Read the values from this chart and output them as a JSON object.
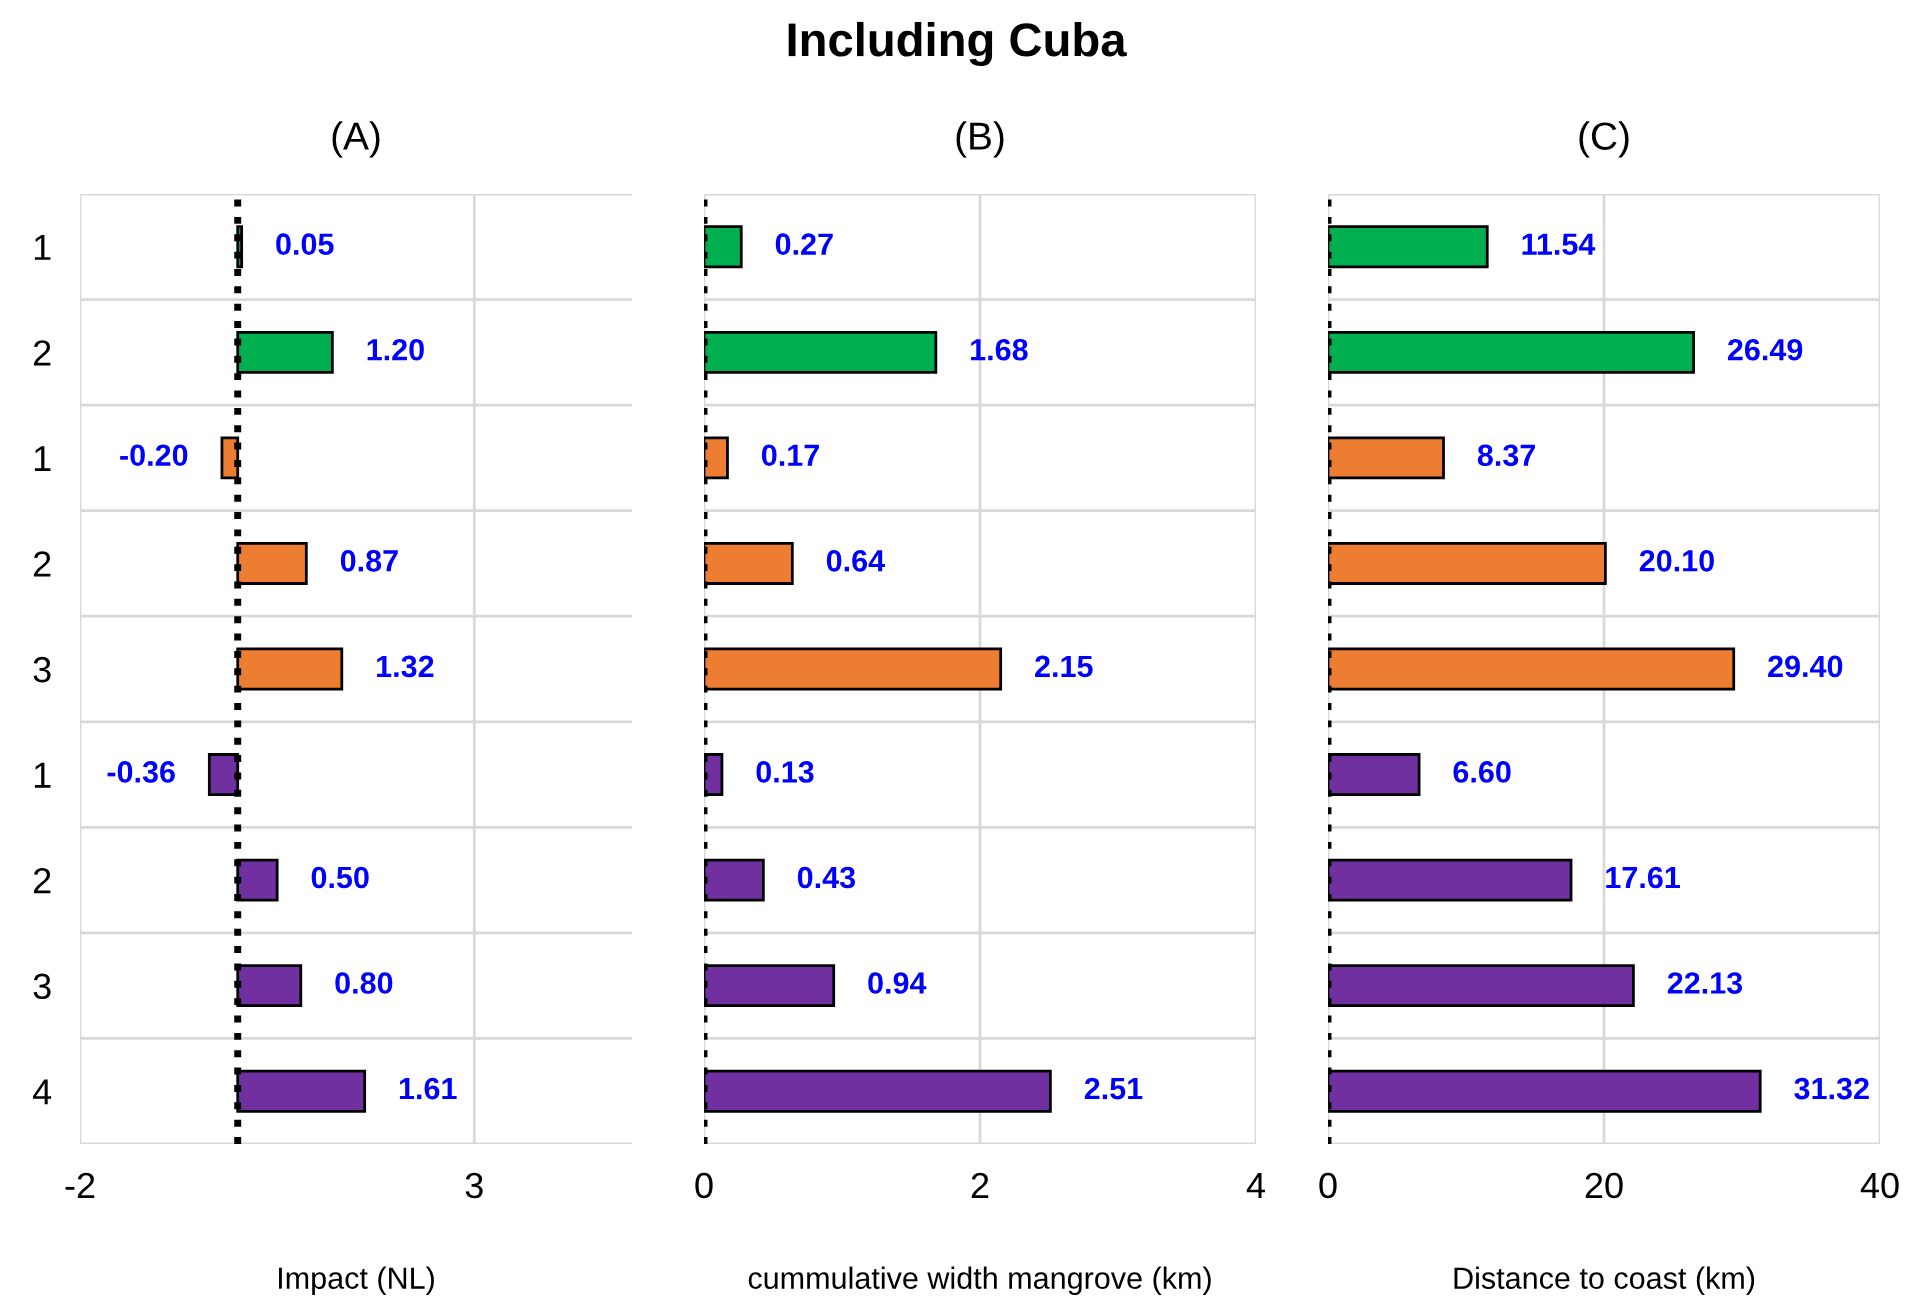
{
  "chart_data": [
    {
      "type": "bar",
      "orientation": "horizontal",
      "title": "(A)",
      "xlabel": "Impact (NL)",
      "annotations": [
        "Including Cuba"
      ],
      "categories": [
        "1",
        "2",
        "1",
        "2",
        "3",
        "1",
        "2",
        "3",
        "4"
      ],
      "values": [
        0.05,
        1.2,
        -0.2,
        0.87,
        1.32,
        -0.36,
        0.5,
        0.8,
        1.61
      ],
      "value_labels": [
        "0.05",
        "1.20",
        "-0.20",
        "0.87",
        "1.32",
        "-0.36",
        "0.50",
        "0.80",
        "1.61"
      ],
      "colors": [
        "#00b050",
        "#00b050",
        "#ed7d31",
        "#ed7d31",
        "#ed7d31",
        "#7030a0",
        "#7030a0",
        "#7030a0",
        "#7030a0"
      ],
      "xlim": [
        -2,
        5
      ],
      "xticks": [
        -2,
        3
      ],
      "grid": true,
      "ref_lines": [
        {
          "axis": "x",
          "value": 0,
          "color": "#000000",
          "line_style": "dotted"
        }
      ]
    },
    {
      "type": "bar",
      "orientation": "horizontal",
      "title": "(B)",
      "xlabel": "cummulative width mangrove (km)",
      "tick_labels": "x",
      "categories": [
        "1",
        "2",
        "1",
        "2",
        "3",
        "1",
        "2",
        "3",
        "4"
      ],
      "values": [
        0.27,
        1.68,
        0.17,
        0.64,
        2.15,
        0.13,
        0.43,
        0.94,
        2.51
      ],
      "value_labels": [
        "0.27",
        "1.68",
        "0.17",
        "0.64",
        "2.15",
        "0.13",
        "0.43",
        "0.94",
        "2.51"
      ],
      "colors": [
        "#00b050",
        "#00b050",
        "#ed7d31",
        "#ed7d31",
        "#ed7d31",
        "#7030a0",
        "#7030a0",
        "#7030a0",
        "#7030a0"
      ],
      "xlim": [
        0,
        4
      ],
      "xticks": [
        0,
        2,
        4
      ],
      "grid": true,
      "ref_lines": [
        {
          "axis": "x",
          "value": 0,
          "color": "#000000",
          "line_style": "dotted"
        }
      ]
    },
    {
      "type": "bar",
      "orientation": "horizontal",
      "title": "(C)",
      "xlabel": "Distance to coast (km)",
      "tick_labels": "x",
      "categories": [
        "1",
        "2",
        "1",
        "2",
        "3",
        "1",
        "2",
        "3",
        "4"
      ],
      "values": [
        11.54,
        26.49,
        8.37,
        20.1,
        29.4,
        6.6,
        17.61,
        22.13,
        31.32
      ],
      "value_labels": [
        "11.54",
        "26.49",
        "8.37",
        "20.10",
        "29.40",
        "6.60",
        "17.61",
        "22.13",
        "31.32"
      ],
      "colors": [
        "#00b050",
        "#00b050",
        "#ed7d31",
        "#ed7d31",
        "#ed7d31",
        "#7030a0",
        "#7030a0",
        "#7030a0",
        "#7030a0"
      ],
      "xlim": [
        0,
        40
      ],
      "xticks": [
        0,
        20,
        40
      ],
      "grid": true,
      "ref_lines": [
        {
          "axis": "x",
          "value": 0,
          "color": "#000000",
          "line_style": "dotted"
        }
      ]
    }
  ]
}
